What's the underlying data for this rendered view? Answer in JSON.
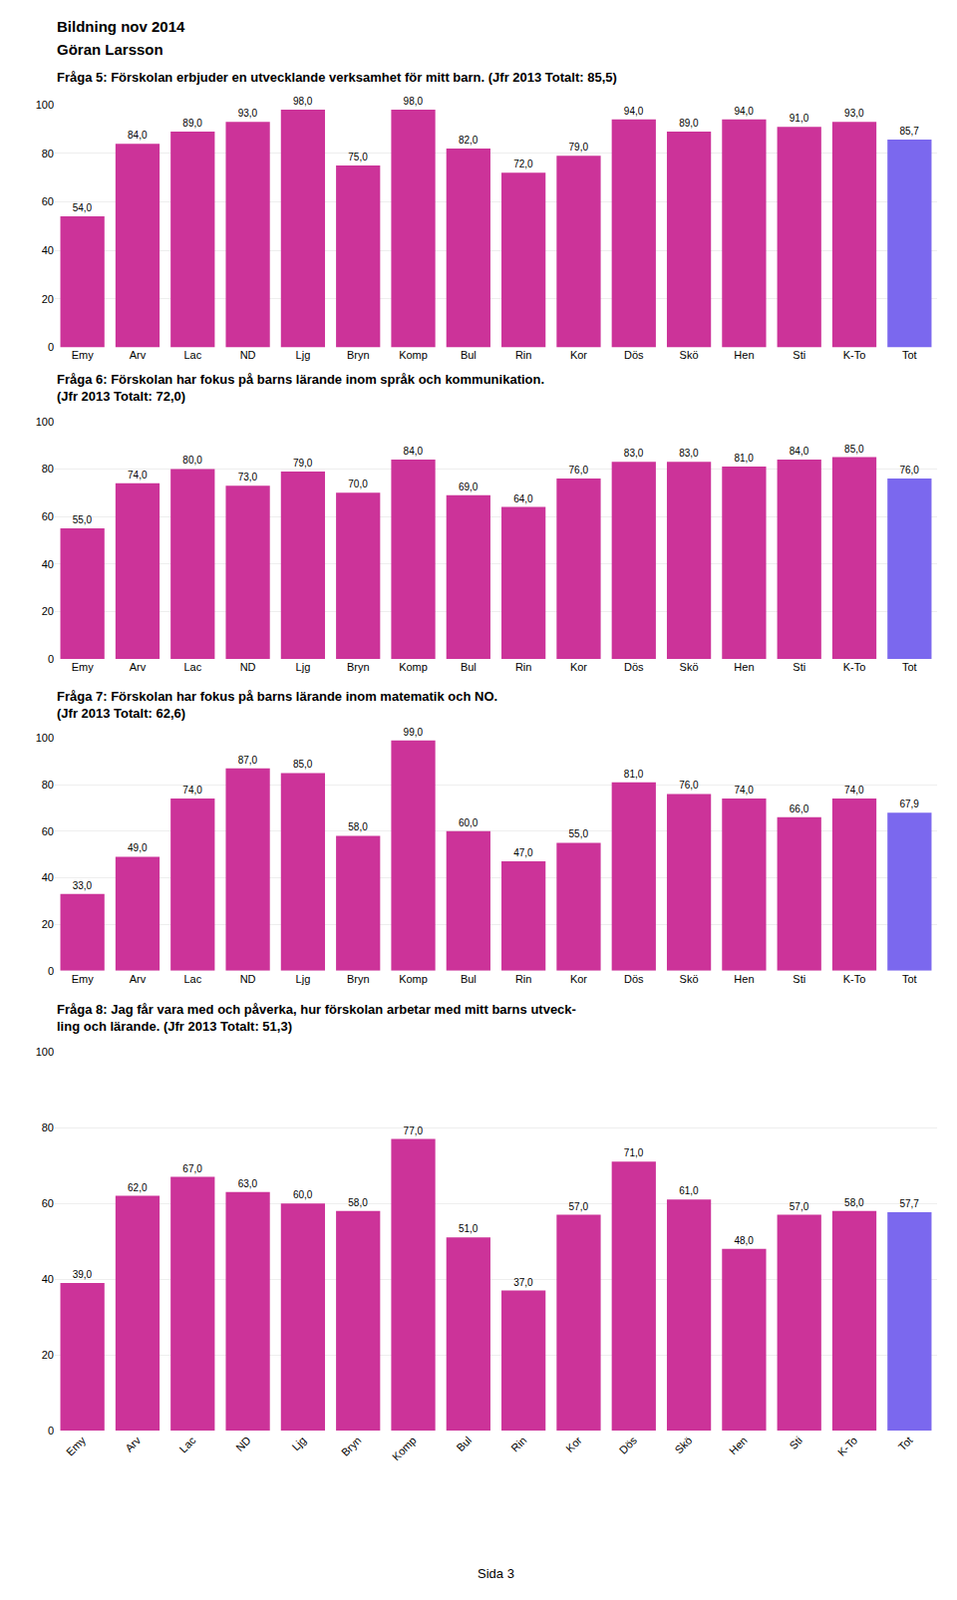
{
  "annotations": [
    "Bildning nov 2014",
    "Göran Larsson",
    "Sida 3"
  ],
  "chart_data": [
    {
      "type": "bar",
      "title": "Fråga 5: Förskolan erbjuder en utvecklande verksamhet för mitt barn. (Jfr 2013 Totalt: 85,5)",
      "categories": [
        "Emy",
        "Arv",
        "Lac",
        "ND",
        "Ljg",
        "Bryn",
        "Komp",
        "Bul",
        "Rin",
        "Kor",
        "Dös",
        "Skö",
        "Hen",
        "Sti",
        "K-To",
        "Tot"
      ],
      "values": [
        54.0,
        84.0,
        89.0,
        93.0,
        98.0,
        75.0,
        98.0,
        82.0,
        72.0,
        79.0,
        94.0,
        89.0,
        94.0,
        91.0,
        93.0,
        85.7
      ],
      "value_labels": [
        "54,0",
        "84,0",
        "89,0",
        "93,0",
        "98,0",
        "75,0",
        "98,0",
        "82,0",
        "72,0",
        "79,0",
        "94,0",
        "89,0",
        "94,0",
        "91,0",
        "93,0",
        "85,7"
      ],
      "colors": [
        "#CC3399",
        "#CC3399",
        "#CC3399",
        "#CC3399",
        "#CC3399",
        "#CC3399",
        "#CC3399",
        "#CC3399",
        "#CC3399",
        "#CC3399",
        "#CC3399",
        "#CC3399",
        "#CC3399",
        "#CC3399",
        "#CC3399",
        "#7B68EE"
      ],
      "ylim": [
        0,
        100
      ],
      "yticks": [
        0,
        20,
        40,
        60,
        80,
        100
      ],
      "grid": true,
      "data_labels": true
    },
    {
      "type": "bar",
      "title": "Fråga 6: Förskolan har fokus på barns lärande inom språk och kommunikation.\n(Jfr 2013 Totalt: 72,0)",
      "categories": [
        "Emy",
        "Arv",
        "Lac",
        "ND",
        "Ljg",
        "Bryn",
        "Komp",
        "Bul",
        "Rin",
        "Kor",
        "Dös",
        "Skö",
        "Hen",
        "Sti",
        "K-To",
        "Tot"
      ],
      "values": [
        55.0,
        74.0,
        80.0,
        73.0,
        79.0,
        70.0,
        84.0,
        69.0,
        64.0,
        76.0,
        83.0,
        83.0,
        81.0,
        84.0,
        85.0,
        76.0
      ],
      "value_labels": [
        "55,0",
        "74,0",
        "80,0",
        "73,0",
        "79,0",
        "70,0",
        "84,0",
        "69,0",
        "64,0",
        "76,0",
        "83,0",
        "83,0",
        "81,0",
        "84,0",
        "85,0",
        "76,0"
      ],
      "colors": [
        "#CC3399",
        "#CC3399",
        "#CC3399",
        "#CC3399",
        "#CC3399",
        "#CC3399",
        "#CC3399",
        "#CC3399",
        "#CC3399",
        "#CC3399",
        "#CC3399",
        "#CC3399",
        "#CC3399",
        "#CC3399",
        "#CC3399",
        "#7B68EE"
      ],
      "ylim": [
        0,
        100
      ],
      "yticks": [
        0,
        20,
        40,
        60,
        80,
        100
      ],
      "grid": true,
      "data_labels": true
    },
    {
      "type": "bar",
      "title": "Fråga 7: Förskolan har fokus på barns lärande inom matematik och NO.\n(Jfr 2013 Totalt: 62,6)",
      "categories": [
        "Emy",
        "Arv",
        "Lac",
        "ND",
        "Ljg",
        "Bryn",
        "Komp",
        "Bul",
        "Rin",
        "Kor",
        "Dös",
        "Skö",
        "Hen",
        "Sti",
        "K-To",
        "Tot"
      ],
      "values": [
        33.0,
        49.0,
        74.0,
        87.0,
        85.0,
        58.0,
        99.0,
        60.0,
        47.0,
        55.0,
        81.0,
        76.0,
        74.0,
        66.0,
        74.0,
        67.9
      ],
      "value_labels": [
        "33,0",
        "49,0",
        "74,0",
        "87,0",
        "85,0",
        "58,0",
        "99,0",
        "60,0",
        "47,0",
        "55,0",
        "81,0",
        "76,0",
        "74,0",
        "66,0",
        "74,0",
        "67,9"
      ],
      "colors": [
        "#CC3399",
        "#CC3399",
        "#CC3399",
        "#CC3399",
        "#CC3399",
        "#CC3399",
        "#CC3399",
        "#CC3399",
        "#CC3399",
        "#CC3399",
        "#CC3399",
        "#CC3399",
        "#CC3399",
        "#CC3399",
        "#CC3399",
        "#7B68EE"
      ],
      "ylim": [
        0,
        100
      ],
      "yticks": [
        0,
        20,
        40,
        60,
        80,
        100
      ],
      "grid": true,
      "data_labels": true
    },
    {
      "type": "bar",
      "title": "Fråga 8: Jag får vara med och påverka, hur förskolan arbetar med mitt barns utveck-\nling och lärande. (Jfr 2013 Totalt: 51,3)",
      "categories": [
        "Emy",
        "Arv",
        "Lac",
        "ND",
        "Ljg",
        "Bryn",
        "Komp",
        "Bul",
        "Rin",
        "Kor",
        "Dös",
        "Skö",
        "Hen",
        "Sti",
        "K-To",
        "Tot"
      ],
      "values": [
        39.0,
        62.0,
        67.0,
        63.0,
        60.0,
        58.0,
        77.0,
        51.0,
        37.0,
        57.0,
        71.0,
        61.0,
        48.0,
        57.0,
        58.0,
        57.7
      ],
      "value_labels": [
        "39,0",
        "62,0",
        "67,0",
        "63,0",
        "60,0",
        "58,0",
        "77,0",
        "51,0",
        "37,0",
        "57,0",
        "71,0",
        "61,0",
        "48,0",
        "57,0",
        "58,0",
        "57,7"
      ],
      "colors": [
        "#CC3399",
        "#CC3399",
        "#CC3399",
        "#CC3399",
        "#CC3399",
        "#CC3399",
        "#CC3399",
        "#CC3399",
        "#CC3399",
        "#CC3399",
        "#CC3399",
        "#CC3399",
        "#CC3399",
        "#CC3399",
        "#CC3399",
        "#7B68EE"
      ],
      "ylim": [
        0,
        100
      ],
      "yticks": [
        0,
        20,
        40,
        60,
        80,
        100
      ],
      "grid": true,
      "data_labels": true
    }
  ]
}
